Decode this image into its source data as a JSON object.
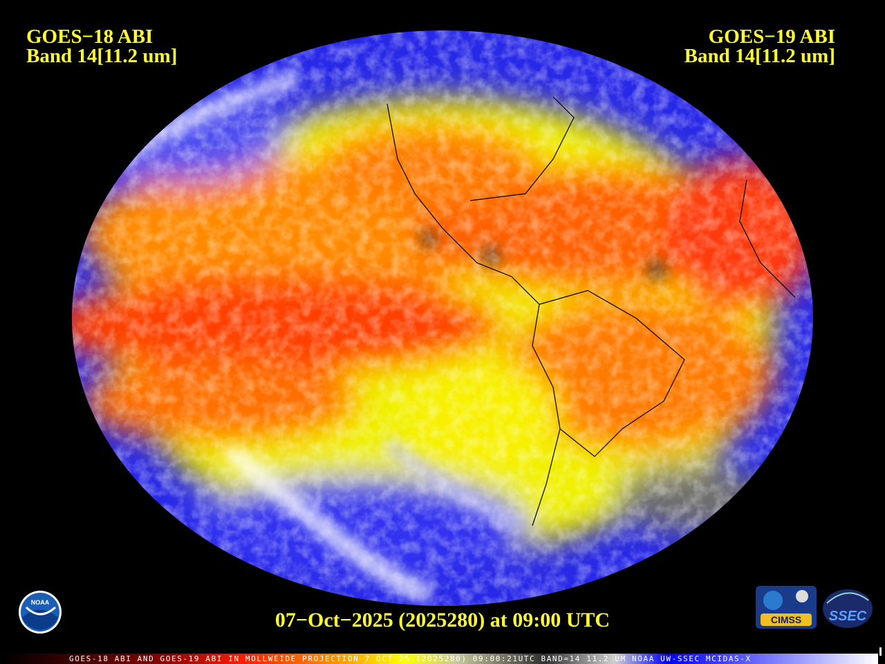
{
  "header": {
    "left": {
      "line1": "GOES−18 ABI",
      "line2": "Band 14[11.2 um]"
    },
    "right": {
      "line1": "GOES−19 ABI",
      "line2": "Band 14[11.2 um]"
    }
  },
  "timestamp": "07−Oct−2025 (2025280) at 09:00 UTC",
  "footer": "GOES-18 ABI AND GOES-19 ABI IN MOLLWEIDE PROJECTION 7 OCT 25 (2025280) 09:00:21UTC BAND=14 11.2 UM NOAA UW-SSEC MCIDAS-X",
  "logos": {
    "noaa": "NOAA",
    "cimss": "CIMSS",
    "ssec": "SSEC"
  }
}
